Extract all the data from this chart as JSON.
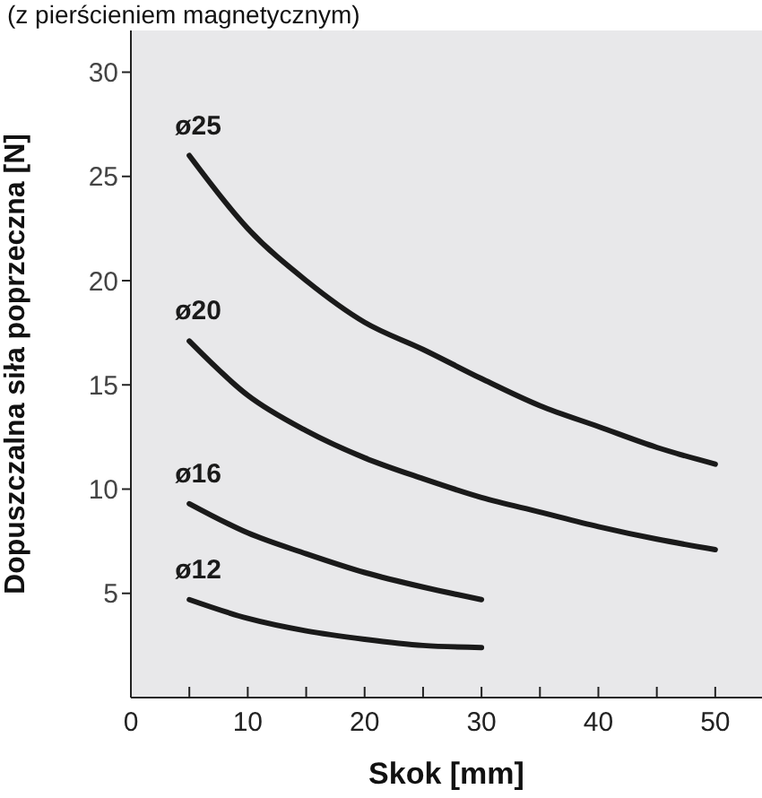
{
  "chart_data": {
    "type": "line",
    "title": "(z pierścieniem magnetycznym)",
    "xlabel": "Skok [mm]",
    "ylabel": "Dopuszczalna siła poprzeczna [N]",
    "xlim": [
      0,
      54
    ],
    "ylim": [
      0,
      32
    ],
    "xticks": [
      0,
      {
        "value": 5,
        "label": null
      },
      10,
      {
        "value": 15,
        "label": null
      },
      20,
      {
        "value": 25,
        "label": null
      },
      30,
      {
        "value": 35,
        "label": null
      },
      40,
      {
        "value": 45,
        "label": null
      },
      50
    ],
    "yticks": [
      5,
      10,
      15,
      20,
      25,
      30
    ],
    "legend": false,
    "marker": "none",
    "line_style": "solid",
    "series": [
      {
        "name": "ø25",
        "color": "#1a1a1a",
        "x": [
          5,
          10,
          15,
          20,
          25,
          30,
          35,
          40,
          45,
          50
        ],
        "values": [
          26,
          22.5,
          20,
          18,
          16.7,
          15.3,
          14,
          13,
          12,
          11.2
        ]
      },
      {
        "name": "ø20",
        "color": "#1a1a1a",
        "x": [
          5,
          10,
          15,
          20,
          25,
          30,
          35,
          40,
          45,
          50
        ],
        "values": [
          17.1,
          14.5,
          12.8,
          11.5,
          10.5,
          9.6,
          8.9,
          8.2,
          7.6,
          7.1
        ]
      },
      {
        "name": "ø16",
        "color": "#1a1a1a",
        "x": [
          5,
          10,
          15,
          20,
          25,
          30
        ],
        "values": [
          9.3,
          7.9,
          6.9,
          6,
          5.3,
          4.7
        ]
      },
      {
        "name": "ø12",
        "color": "#1a1a1a",
        "x": [
          5,
          10,
          15,
          20,
          25,
          30
        ],
        "values": [
          4.7,
          3.8,
          3.2,
          2.8,
          2.5,
          2.4
        ]
      }
    ]
  }
}
